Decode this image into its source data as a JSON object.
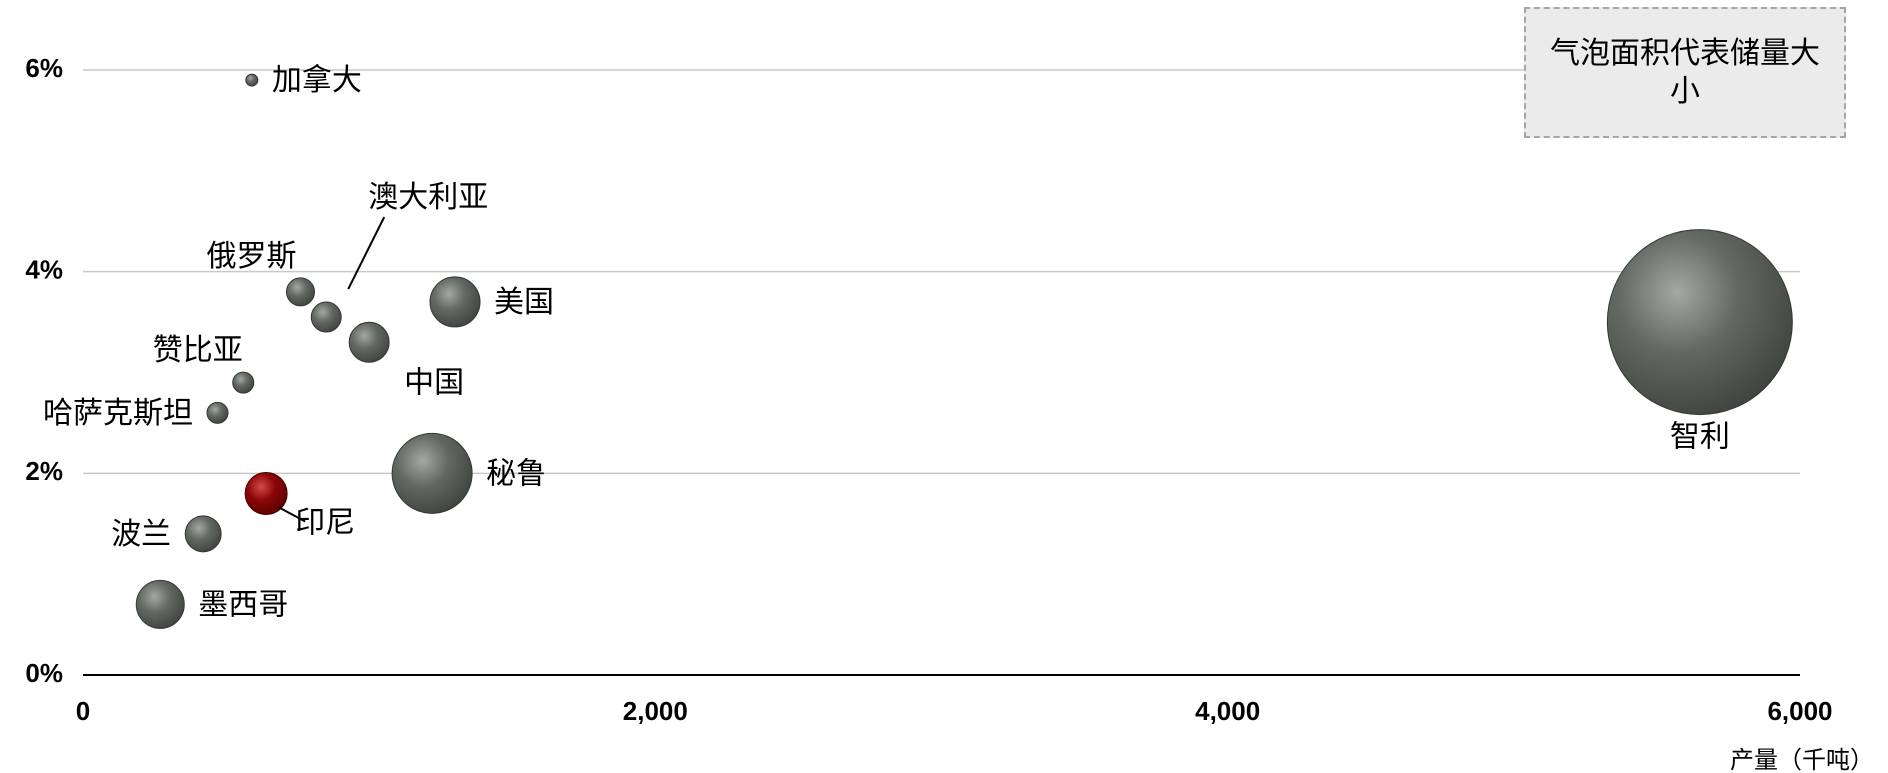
{
  "chart_data": {
    "type": "bubble",
    "xlabel": "",
    "ylabel": "",
    "x_unit_label": "产量（千吨）",
    "xlim": [
      0,
      6000
    ],
    "ylim": [
      0,
      6
    ],
    "x_ticks": [
      {
        "value": 0,
        "label": "0"
      },
      {
        "value": 2000,
        "label": "2,000"
      },
      {
        "value": 4000,
        "label": "4,000"
      },
      {
        "value": 6000,
        "label": "6,000"
      }
    ],
    "y_ticks": [
      {
        "value": 0,
        "label": "0%"
      },
      {
        "value": 2,
        "label": "2%"
      },
      {
        "value": 4,
        "label": "4%"
      },
      {
        "value": 6,
        "label": "6%"
      }
    ],
    "grid": "horizontal",
    "note": "气泡面积代表储量大小",
    "base_color": "#5a5f5a",
    "highlight_color": "#8b0000",
    "points": [
      {
        "name": "智利",
        "x": 5650,
        "y": 3.5,
        "size": 185,
        "label_pos": "below"
      },
      {
        "name": "秘鲁",
        "x": 1220,
        "y": 2.0,
        "size": 80,
        "label_pos": "right"
      },
      {
        "name": "美国",
        "x": 1300,
        "y": 3.7,
        "size": 50,
        "label_pos": "right"
      },
      {
        "name": "中国",
        "x": 1000,
        "y": 3.3,
        "size": 40,
        "label_pos": "below-right"
      },
      {
        "name": "澳大利亚",
        "x": 850,
        "y": 3.55,
        "size": 30,
        "label_pos": "leader"
      },
      {
        "name": "俄罗斯",
        "x": 760,
        "y": 3.8,
        "size": 28,
        "label_pos": "above-left"
      },
      {
        "name": "赞比亚",
        "x": 560,
        "y": 2.9,
        "size": 21,
        "label_pos": "above-left"
      },
      {
        "name": "哈萨克斯坦",
        "x": 470,
        "y": 2.6,
        "size": 21,
        "label_pos": "left"
      },
      {
        "name": "加拿大",
        "x": 590,
        "y": 5.9,
        "size": 12,
        "label_pos": "right"
      },
      {
        "name": "波兰",
        "x": 420,
        "y": 1.4,
        "size": 36,
        "label_pos": "left"
      },
      {
        "name": "墨西哥",
        "x": 270,
        "y": 0.7,
        "size": 48,
        "label_pos": "right"
      },
      {
        "name": "印尼",
        "x": 640,
        "y": 1.8,
        "size": 42,
        "label_pos": "leader-below-right",
        "highlight": true
      }
    ]
  }
}
